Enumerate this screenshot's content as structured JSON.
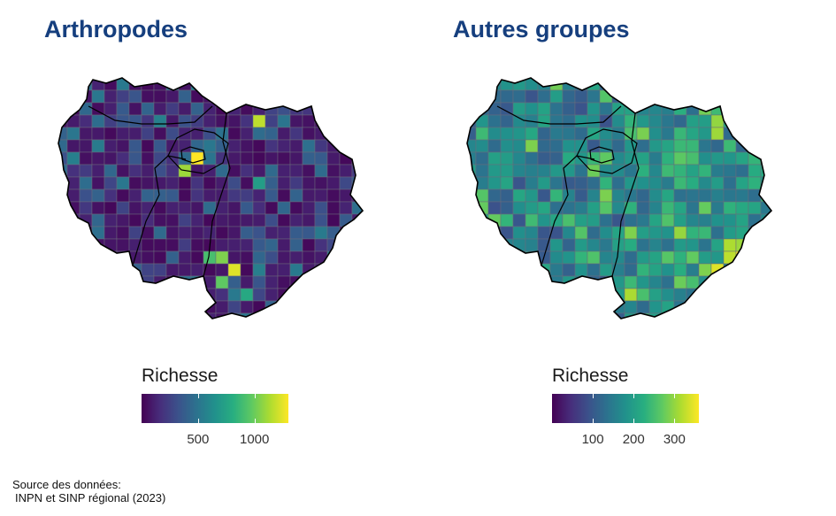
{
  "panels": [
    {
      "title": "Arthropodes",
      "legend_title": "Richesse",
      "tick_labels": [
        "500",
        "1000"
      ],
      "tick_values": [
        500,
        1000
      ],
      "scale_max": 1300,
      "hotspots": [
        {
          "col": 16,
          "row": 3,
          "v": 0.9
        },
        {
          "col": 11,
          "row": 6,
          "v": 1.0
        },
        {
          "col": 10,
          "row": 7,
          "v": 0.85
        },
        {
          "col": 13,
          "row": 14,
          "v": 0.8
        },
        {
          "col": 14,
          "row": 15,
          "v": 0.95
        },
        {
          "col": 12,
          "row": 14,
          "v": 0.7
        },
        {
          "col": 13,
          "row": 16,
          "v": 0.75
        },
        {
          "col": 15,
          "row": 17,
          "v": 0.6
        },
        {
          "col": 16,
          "row": 8,
          "v": 0.55
        }
      ]
    },
    {
      "title": "Autres groupes",
      "legend_title": "Richesse",
      "tick_labels": [
        "100",
        "200",
        "300"
      ],
      "tick_values": [
        100,
        200,
        300
      ],
      "scale_max": 360,
      "hotspots": [
        {
          "col": 20,
          "row": 4,
          "v": 0.85
        },
        {
          "col": 20,
          "row": 15,
          "v": 0.95
        },
        {
          "col": 22,
          "row": 14,
          "v": 1.0
        },
        {
          "col": 21,
          "row": 14,
          "v": 0.9
        },
        {
          "col": 19,
          "row": 15,
          "v": 0.8
        },
        {
          "col": 11,
          "row": 6,
          "v": 0.75
        },
        {
          "col": 13,
          "row": 12,
          "v": 0.8
        },
        {
          "col": 17,
          "row": 7,
          "v": 0.65
        },
        {
          "col": 18,
          "row": 6,
          "v": 0.7
        }
      ]
    }
  ],
  "source_lines": [
    "Source des données:",
    "INPN et SINP régional (2023)"
  ],
  "colors": {
    "title": "#163f7e",
    "viridis": [
      "#440154",
      "#472d7b",
      "#3b528b",
      "#2c728e",
      "#21918c",
      "#28ae80",
      "#5ec962",
      "#addc30",
      "#fde725"
    ]
  }
}
